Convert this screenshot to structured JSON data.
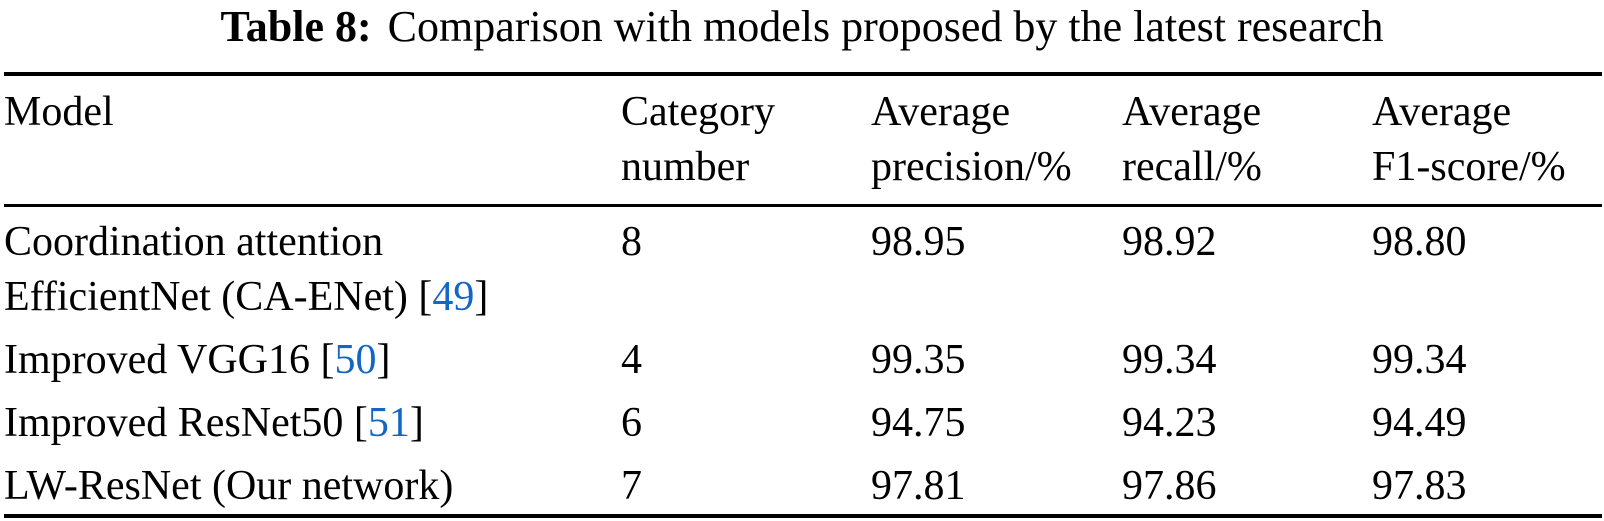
{
  "caption": {
    "label": "Table 8:",
    "text": "Comparison with models proposed by the latest research"
  },
  "table": {
    "headers": {
      "model": "Model",
      "category": "Category\nnumber",
      "precision": "Average\nprecision/%",
      "recall": "Average\nrecall/%",
      "f1": "Average\nF1-score/%"
    },
    "citation_color": "#1266c4",
    "rows": [
      {
        "model_prefix": "Coordination attention\nEfficientNet (CA-ENet) [",
        "ref": "49",
        "model_suffix": "]",
        "category": "8",
        "precision": "98.95",
        "recall": "98.92",
        "f1": "98.80"
      },
      {
        "model_prefix": "Improved VGG16 [",
        "ref": "50",
        "model_suffix": "]",
        "category": "4",
        "precision": "99.35",
        "recall": "99.34",
        "f1": "99.34"
      },
      {
        "model_prefix": "Improved ResNet50 [",
        "ref": "51",
        "model_suffix": "]",
        "category": "6",
        "precision": "94.75",
        "recall": "94.23",
        "f1": "94.49"
      },
      {
        "model_prefix": "LW-ResNet (Our network)",
        "ref": "",
        "model_suffix": "",
        "category": "7",
        "precision": "97.81",
        "recall": "97.86",
        "f1": "97.83"
      }
    ]
  }
}
